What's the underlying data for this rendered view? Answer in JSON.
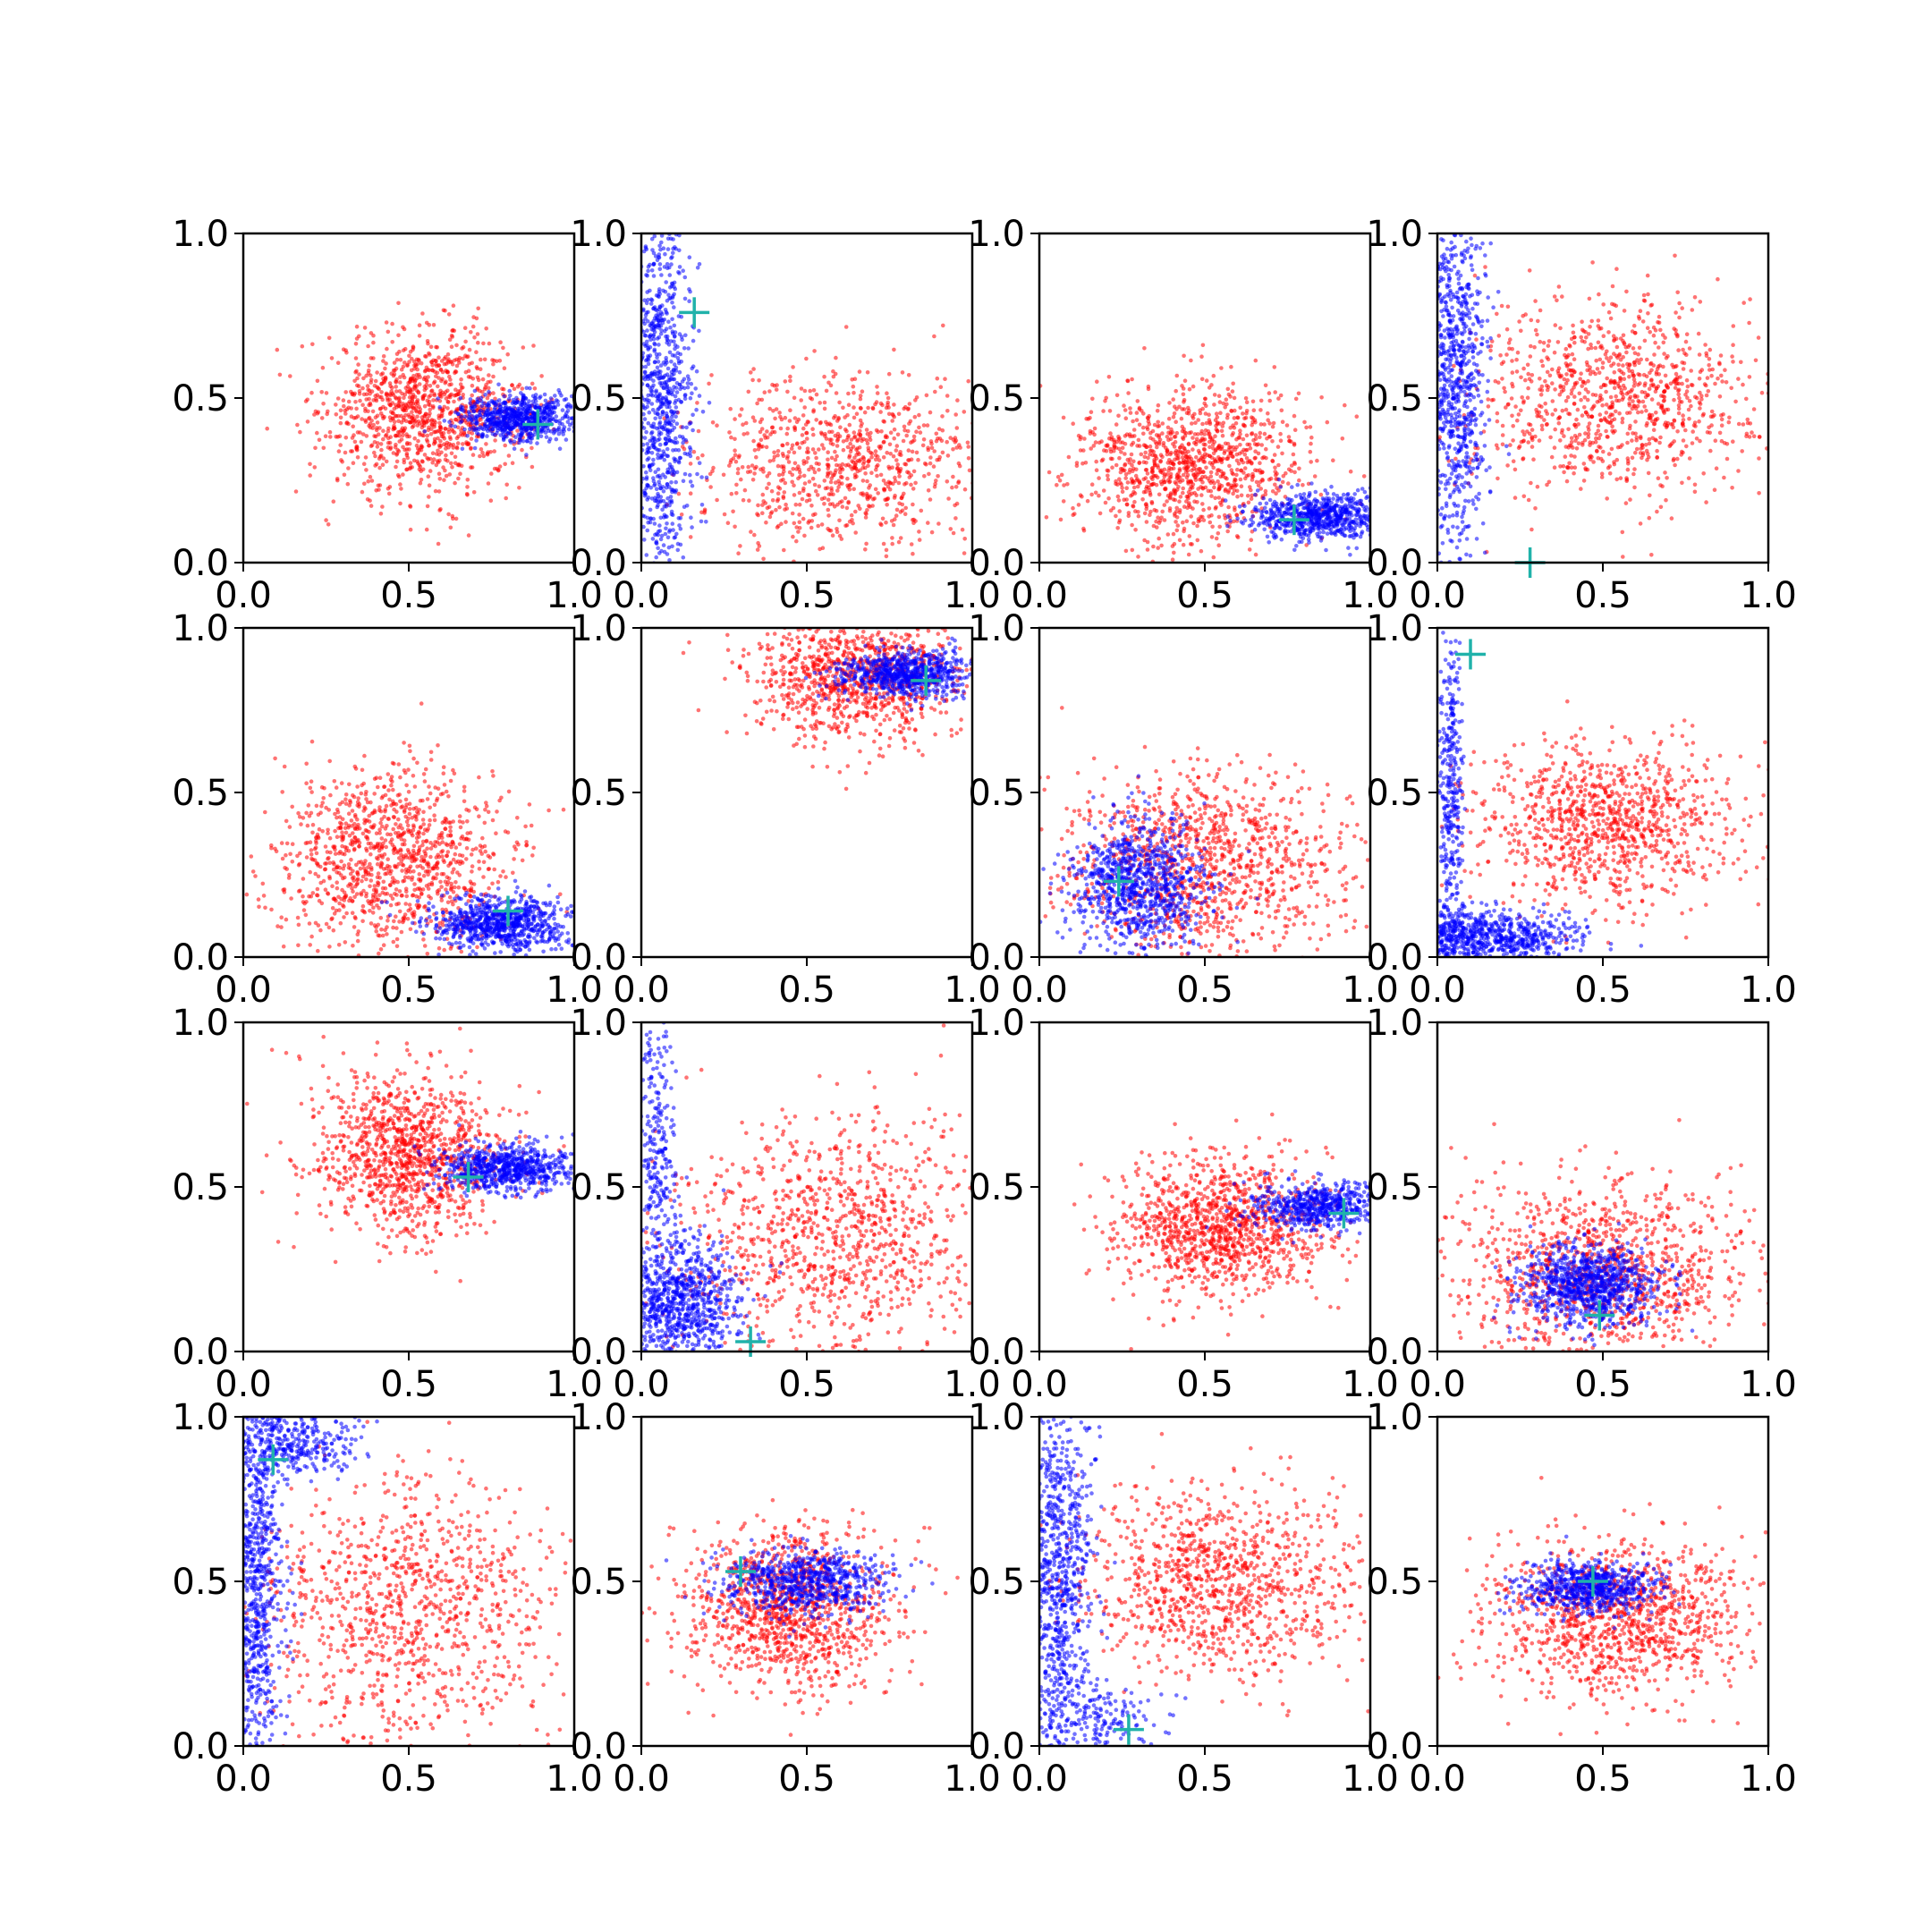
{
  "figure": {
    "background": "#ffffff",
    "rows": 4,
    "cols": 4
  },
  "colors": {
    "series_a": "#ff0000",
    "series_b": "#0000ff",
    "marker": "#20b2aa"
  },
  "chart_data": [
    {
      "type": "scatter",
      "xlim": [
        0,
        1
      ],
      "ylim": [
        0,
        1
      ],
      "xticks": [
        "0.0",
        "0.5",
        "1.0"
      ],
      "yticks": [
        "0.0",
        "0.5",
        "1.0"
      ],
      "grid": false,
      "marker": {
        "x": 0.89,
        "y": 0.42
      },
      "clusters": [
        {
          "series": "red",
          "cx": 0.55,
          "cy": 0.46,
          "sx": 0.15,
          "sy": 0.12,
          "n": 1100
        },
        {
          "series": "blue",
          "cx": 0.83,
          "cy": 0.44,
          "sx": 0.09,
          "sy": 0.035,
          "n": 700
        }
      ]
    },
    {
      "type": "scatter",
      "xlim": [
        0,
        1
      ],
      "ylim": [
        0,
        1
      ],
      "xticks": [
        "0.0",
        "0.5",
        "1.0"
      ],
      "yticks": [
        "0.0",
        "0.5",
        "1.0"
      ],
      "grid": false,
      "marker": {
        "x": 0.16,
        "y": 0.76
      },
      "clusters": [
        {
          "series": "red",
          "cx": 0.62,
          "cy": 0.3,
          "sx": 0.22,
          "sy": 0.13,
          "n": 900
        },
        {
          "series": "blue",
          "cx": 0.06,
          "cy": 0.5,
          "sx": 0.05,
          "sy": 0.32,
          "n": 900
        }
      ]
    },
    {
      "type": "scatter",
      "xlim": [
        0,
        1
      ],
      "ylim": [
        0,
        1
      ],
      "xticks": [
        "0.0",
        "0.5",
        "1.0"
      ],
      "yticks": [
        "0.0",
        "0.5",
        "1.0"
      ],
      "grid": false,
      "marker": {
        "x": 0.77,
        "y": 0.13
      },
      "clusters": [
        {
          "series": "red",
          "cx": 0.45,
          "cy": 0.3,
          "sx": 0.18,
          "sy": 0.12,
          "n": 1100
        },
        {
          "series": "blue",
          "cx": 0.84,
          "cy": 0.14,
          "sx": 0.1,
          "sy": 0.035,
          "n": 700
        }
      ]
    },
    {
      "type": "scatter",
      "xlim": [
        0,
        1
      ],
      "ylim": [
        0,
        1
      ],
      "xticks": [
        "0.0",
        "0.5",
        "1.0"
      ],
      "yticks": [
        "0.0",
        "0.5",
        "1.0"
      ],
      "grid": false,
      "marker": {
        "x": 0.28,
        "y": 0.0
      },
      "clusters": [
        {
          "series": "red",
          "cx": 0.55,
          "cy": 0.5,
          "sx": 0.22,
          "sy": 0.15,
          "n": 1000
        },
        {
          "series": "blue",
          "cx": 0.05,
          "cy": 0.55,
          "sx": 0.05,
          "sy": 0.3,
          "n": 900
        }
      ]
    },
    {
      "type": "scatter",
      "xlim": [
        0,
        1
      ],
      "ylim": [
        0,
        1
      ],
      "xticks": [
        "0.0",
        "0.5",
        "1.0"
      ],
      "yticks": [
        "0.0",
        "0.5",
        "1.0"
      ],
      "grid": false,
      "marker": {
        "x": 0.8,
        "y": 0.14
      },
      "clusters": [
        {
          "series": "red",
          "cx": 0.45,
          "cy": 0.3,
          "sx": 0.18,
          "sy": 0.14,
          "n": 1100
        },
        {
          "series": "blue",
          "cx": 0.78,
          "cy": 0.1,
          "sx": 0.1,
          "sy": 0.04,
          "n": 800
        }
      ]
    },
    {
      "type": "scatter",
      "xlim": [
        0,
        1
      ],
      "ylim": [
        0,
        1
      ],
      "xticks": [
        "0.0",
        "0.5",
        "1.0"
      ],
      "yticks": [
        "0.0",
        "0.5",
        "1.0"
      ],
      "grid": false,
      "marker": {
        "x": 0.86,
        "y": 0.84
      },
      "clusters": [
        {
          "series": "red",
          "cx": 0.65,
          "cy": 0.86,
          "sx": 0.16,
          "sy": 0.1,
          "n": 1000
        },
        {
          "series": "blue",
          "cx": 0.8,
          "cy": 0.86,
          "sx": 0.1,
          "sy": 0.035,
          "n": 700
        }
      ]
    },
    {
      "type": "scatter",
      "xlim": [
        0,
        1
      ],
      "ylim": [
        0,
        1
      ],
      "xticks": [
        "0.0",
        "0.5",
        "1.0"
      ],
      "yticks": [
        "0.0",
        "0.5",
        "1.0"
      ],
      "grid": false,
      "marker": {
        "x": 0.24,
        "y": 0.23
      },
      "clusters": [
        {
          "series": "red",
          "cx": 0.5,
          "cy": 0.28,
          "sx": 0.22,
          "sy": 0.14,
          "n": 1100
        },
        {
          "series": "blue",
          "cx": 0.3,
          "cy": 0.22,
          "sx": 0.1,
          "sy": 0.1,
          "n": 900
        }
      ]
    },
    {
      "type": "scatter",
      "xlim": [
        0,
        1
      ],
      "ylim": [
        0,
        1
      ],
      "xticks": [
        "0.0",
        "0.5",
        "1.0"
      ],
      "yticks": [
        "0.0",
        "0.5",
        "1.0"
      ],
      "grid": false,
      "marker": {
        "x": 0.1,
        "y": 0.92
      },
      "clusters": [
        {
          "series": "red",
          "cx": 0.5,
          "cy": 0.4,
          "sx": 0.2,
          "sy": 0.12,
          "n": 1000
        },
        {
          "series": "blue",
          "cx": 0.14,
          "cy": 0.06,
          "sx": 0.14,
          "sy": 0.04,
          "n": 800
        },
        {
          "series": "blue",
          "cx": 0.04,
          "cy": 0.5,
          "sx": 0.02,
          "sy": 0.25,
          "n": 350
        }
      ]
    },
    {
      "type": "scatter",
      "xlim": [
        0,
        1
      ],
      "ylim": [
        0,
        1
      ],
      "xticks": [
        "0.0",
        "0.5",
        "1.0"
      ],
      "yticks": [
        "0.0",
        "0.5",
        "1.0"
      ],
      "grid": false,
      "marker": {
        "x": 0.68,
        "y": 0.53
      },
      "clusters": [
        {
          "series": "red",
          "cx": 0.5,
          "cy": 0.6,
          "sx": 0.14,
          "sy": 0.12,
          "n": 1100
        },
        {
          "series": "blue",
          "cx": 0.8,
          "cy": 0.56,
          "sx": 0.1,
          "sy": 0.035,
          "n": 700
        }
      ]
    },
    {
      "type": "scatter",
      "xlim": [
        0,
        1
      ],
      "ylim": [
        0,
        1
      ],
      "xticks": [
        "0.0",
        "0.5",
        "1.0"
      ],
      "yticks": [
        "0.0",
        "0.5",
        "1.0"
      ],
      "grid": false,
      "marker": {
        "x": 0.33,
        "y": 0.03
      },
      "clusters": [
        {
          "series": "red",
          "cx": 0.6,
          "cy": 0.35,
          "sx": 0.22,
          "sy": 0.18,
          "n": 1000
        },
        {
          "series": "blue",
          "cx": 0.12,
          "cy": 0.15,
          "sx": 0.09,
          "sy": 0.1,
          "n": 800
        },
        {
          "series": "blue",
          "cx": 0.05,
          "cy": 0.6,
          "sx": 0.03,
          "sy": 0.25,
          "n": 300
        }
      ]
    },
    {
      "type": "scatter",
      "xlim": [
        0,
        1
      ],
      "ylim": [
        0,
        1
      ],
      "xticks": [
        "0.0",
        "0.5",
        "1.0"
      ],
      "yticks": [
        "0.0",
        "0.5",
        "1.0"
      ],
      "grid": false,
      "marker": {
        "x": 0.92,
        "y": 0.42
      },
      "clusters": [
        {
          "series": "red",
          "cx": 0.55,
          "cy": 0.38,
          "sx": 0.16,
          "sy": 0.1,
          "n": 1100
        },
        {
          "series": "blue",
          "cx": 0.84,
          "cy": 0.44,
          "sx": 0.1,
          "sy": 0.035,
          "n": 600
        }
      ]
    },
    {
      "type": "scatter",
      "xlim": [
        0,
        1
      ],
      "ylim": [
        0,
        1
      ],
      "xticks": [
        "0.0",
        "0.5",
        "1.0"
      ],
      "yticks": [
        "0.0",
        "0.5",
        "1.0"
      ],
      "grid": false,
      "marker": {
        "x": 0.49,
        "y": 0.11
      },
      "clusters": [
        {
          "series": "red",
          "cx": 0.5,
          "cy": 0.25,
          "sx": 0.22,
          "sy": 0.14,
          "n": 1100
        },
        {
          "series": "blue",
          "cx": 0.46,
          "cy": 0.2,
          "sx": 0.1,
          "sy": 0.06,
          "n": 900
        }
      ]
    },
    {
      "type": "scatter",
      "xlim": [
        0,
        1
      ],
      "ylim": [
        0,
        1
      ],
      "xticks": [
        "0.0",
        "0.5",
        "1.0"
      ],
      "yticks": [
        "0.0",
        "0.5",
        "1.0"
      ],
      "grid": false,
      "marker": {
        "x": 0.09,
        "y": 0.87
      },
      "clusters": [
        {
          "series": "red",
          "cx": 0.5,
          "cy": 0.4,
          "sx": 0.22,
          "sy": 0.2,
          "n": 1000
        },
        {
          "series": "blue",
          "cx": 0.04,
          "cy": 0.5,
          "sx": 0.04,
          "sy": 0.3,
          "n": 800
        },
        {
          "series": "blue",
          "cx": 0.15,
          "cy": 0.92,
          "sx": 0.1,
          "sy": 0.05,
          "n": 350
        }
      ]
    },
    {
      "type": "scatter",
      "xlim": [
        0,
        1
      ],
      "ylim": [
        0,
        1
      ],
      "xticks": [
        "0.0",
        "0.5",
        "1.0"
      ],
      "yticks": [
        "0.0",
        "0.5",
        "1.0"
      ],
      "grid": false,
      "marker": {
        "x": 0.3,
        "y": 0.53
      },
      "clusters": [
        {
          "series": "red",
          "cx": 0.45,
          "cy": 0.42,
          "sx": 0.15,
          "sy": 0.12,
          "n": 1100
        },
        {
          "series": "blue",
          "cx": 0.5,
          "cy": 0.5,
          "sx": 0.12,
          "sy": 0.05,
          "n": 700
        }
      ]
    },
    {
      "type": "scatter",
      "xlim": [
        0,
        1
      ],
      "ylim": [
        0,
        1
      ],
      "xticks": [
        "0.0",
        "0.5",
        "1.0"
      ],
      "yticks": [
        "0.0",
        "0.5",
        "1.0"
      ],
      "grid": false,
      "marker": {
        "x": 0.27,
        "y": 0.05
      },
      "clusters": [
        {
          "series": "red",
          "cx": 0.55,
          "cy": 0.5,
          "sx": 0.2,
          "sy": 0.14,
          "n": 1000
        },
        {
          "series": "blue",
          "cx": 0.06,
          "cy": 0.5,
          "sx": 0.05,
          "sy": 0.3,
          "n": 900
        },
        {
          "series": "blue",
          "cx": 0.2,
          "cy": 0.08,
          "sx": 0.08,
          "sy": 0.05,
          "n": 150
        }
      ]
    },
    {
      "type": "scatter",
      "xlim": [
        0,
        1
      ],
      "ylim": [
        0,
        1
      ],
      "xticks": [
        "0.0",
        "0.5",
        "1.0"
      ],
      "yticks": [
        "0.0",
        "0.5",
        "1.0"
      ],
      "grid": false,
      "marker": {
        "x": 0.47,
        "y": 0.5
      },
      "clusters": [
        {
          "series": "red",
          "cx": 0.55,
          "cy": 0.38,
          "sx": 0.2,
          "sy": 0.12,
          "n": 1100
        },
        {
          "series": "blue",
          "cx": 0.46,
          "cy": 0.48,
          "sx": 0.1,
          "sy": 0.04,
          "n": 700
        }
      ]
    }
  ]
}
